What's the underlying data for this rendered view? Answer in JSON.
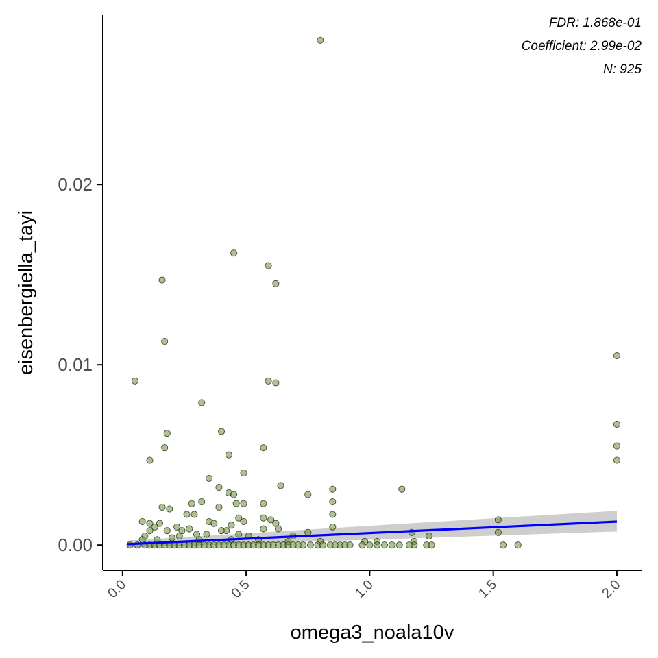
{
  "chart_data": {
    "type": "scatter",
    "title": "",
    "xlabel": "omega3_noala10v",
    "ylabel": "eisenbergiella_tayi",
    "xlim": [
      -0.08,
      2.1
    ],
    "ylim": [
      -0.0014,
      0.0294
    ],
    "x_ticks": [
      0.0,
      0.5,
      1.0,
      1.5,
      2.0
    ],
    "x_tick_labels": [
      "0.0",
      "0.5",
      "1.0",
      "1.5",
      "2.0"
    ],
    "y_ticks": [
      0.0,
      0.01,
      0.02
    ],
    "y_tick_labels": [
      "0.00",
      "0.01",
      "0.02"
    ],
    "grid": false,
    "legend": "none",
    "annotations": [
      "FDR: 1.868e-01",
      "Coefficient: 2.99e-02",
      "N: 925"
    ],
    "colors": {
      "point_fill": "#6b8e3a",
      "point_stroke": "#1f2a10",
      "trend_line": "#0000ff",
      "ci_band": "#bebebe",
      "axis": "#000000"
    },
    "trend_line": {
      "x": [
        0.02,
        2.0
      ],
      "y": [
        5e-05,
        0.0013
      ]
    },
    "ci_band": {
      "x": [
        0.02,
        2.0
      ],
      "upper": [
        0.00025,
        0.0019
      ],
      "lower": [
        -0.00015,
        0.00075
      ]
    },
    "series": [
      {
        "points": [
          [
            0.8,
            0.028
          ],
          [
            0.45,
            0.0162
          ],
          [
            0.59,
            0.0155
          ],
          [
            0.16,
            0.0147
          ],
          [
            0.62,
            0.0145
          ],
          [
            0.17,
            0.0113
          ],
          [
            2.0,
            0.0105
          ],
          [
            0.05,
            0.0091
          ],
          [
            0.59,
            0.0091
          ],
          [
            0.62,
            0.009
          ],
          [
            0.32,
            0.0079
          ],
          [
            2.0,
            0.0067
          ],
          [
            0.4,
            0.0063
          ],
          [
            0.18,
            0.0062
          ],
          [
            2.0,
            0.0055
          ],
          [
            0.17,
            0.0054
          ],
          [
            0.57,
            0.0054
          ],
          [
            0.43,
            0.005
          ],
          [
            0.11,
            0.0047
          ],
          [
            2.0,
            0.0047
          ],
          [
            0.49,
            0.004
          ],
          [
            0.35,
            0.0037
          ],
          [
            0.64,
            0.0033
          ],
          [
            0.39,
            0.0032
          ],
          [
            1.13,
            0.0031
          ],
          [
            0.85,
            0.0031
          ],
          [
            0.75,
            0.0028
          ],
          [
            0.43,
            0.0029
          ],
          [
            0.45,
            0.0028
          ],
          [
            0.32,
            0.0024
          ],
          [
            0.85,
            0.0024
          ],
          [
            0.46,
            0.0023
          ],
          [
            0.49,
            0.0023
          ],
          [
            0.57,
            0.0023
          ],
          [
            0.28,
            0.0023
          ],
          [
            0.39,
            0.0021
          ],
          [
            0.16,
            0.0021
          ],
          [
            0.19,
            0.002
          ],
          [
            0.85,
            0.0017
          ],
          [
            0.26,
            0.0017
          ],
          [
            0.29,
            0.0017
          ],
          [
            0.47,
            0.0015
          ],
          [
            0.57,
            0.0015
          ],
          [
            0.6,
            0.0014
          ],
          [
            0.08,
            0.0013
          ],
          [
            0.11,
            0.0012
          ],
          [
            0.15,
            0.0012
          ],
          [
            1.52,
            0.0014
          ],
          [
            0.35,
            0.0013
          ],
          [
            0.49,
            0.0013
          ],
          [
            0.62,
            0.0012
          ],
          [
            0.37,
            0.0012
          ],
          [
            0.44,
            0.0011
          ],
          [
            0.13,
            0.001
          ],
          [
            0.22,
            0.001
          ],
          [
            0.27,
            0.0009
          ],
          [
            0.63,
            0.0009
          ],
          [
            0.85,
            0.001
          ],
          [
            0.57,
            0.0009
          ],
          [
            0.11,
            0.0008
          ],
          [
            0.18,
            0.0008
          ],
          [
            0.24,
            0.0008
          ],
          [
            0.4,
            0.0008
          ],
          [
            0.42,
            0.0008
          ],
          [
            0.75,
            0.0007
          ],
          [
            1.17,
            0.0007
          ],
          [
            1.52,
            0.0007
          ],
          [
            0.09,
            0.0005
          ],
          [
            0.23,
            0.0005
          ],
          [
            0.3,
            0.0006
          ],
          [
            0.34,
            0.0006
          ],
          [
            0.47,
            0.0006
          ],
          [
            0.51,
            0.0005
          ],
          [
            0.69,
            0.0005
          ],
          [
            1.24,
            0.0005
          ],
          [
            0.08,
            0.0003
          ],
          [
            0.14,
            0.0003
          ],
          [
            0.2,
            0.0004
          ],
          [
            0.31,
            0.0003
          ],
          [
            0.44,
            0.0003
          ],
          [
            0.55,
            0.0003
          ],
          [
            0.67,
            0.0002
          ],
          [
            0.8,
            0.0002
          ],
          [
            0.98,
            0.0002
          ],
          [
            1.03,
            0.0002
          ],
          [
            1.18,
            0.0002
          ],
          [
            0.03,
            0.0
          ],
          [
            0.06,
            0.0
          ],
          [
            0.09,
            0.0
          ],
          [
            0.11,
            0.0
          ],
          [
            0.13,
            0.0
          ],
          [
            0.15,
            0.0
          ],
          [
            0.17,
            0.0
          ],
          [
            0.19,
            0.0
          ],
          [
            0.21,
            0.0
          ],
          [
            0.23,
            0.0
          ],
          [
            0.25,
            0.0
          ],
          [
            0.27,
            0.0
          ],
          [
            0.29,
            0.0
          ],
          [
            0.31,
            0.0
          ],
          [
            0.33,
            0.0
          ],
          [
            0.35,
            0.0
          ],
          [
            0.37,
            0.0
          ],
          [
            0.39,
            0.0
          ],
          [
            0.41,
            0.0
          ],
          [
            0.43,
            0.0
          ],
          [
            0.45,
            0.0
          ],
          [
            0.47,
            0.0
          ],
          [
            0.49,
            0.0
          ],
          [
            0.51,
            0.0
          ],
          [
            0.53,
            0.0
          ],
          [
            0.55,
            0.0
          ],
          [
            0.57,
            0.0
          ],
          [
            0.59,
            0.0
          ],
          [
            0.61,
            0.0
          ],
          [
            0.63,
            0.0
          ],
          [
            0.65,
            0.0
          ],
          [
            0.67,
            0.0
          ],
          [
            0.69,
            0.0
          ],
          [
            0.71,
            0.0
          ],
          [
            0.73,
            0.0
          ],
          [
            0.76,
            0.0
          ],
          [
            0.79,
            0.0
          ],
          [
            0.81,
            0.0
          ],
          [
            0.84,
            0.0
          ],
          [
            0.86,
            0.0
          ],
          [
            0.88,
            0.0
          ],
          [
            0.9,
            0.0
          ],
          [
            0.92,
            0.0
          ],
          [
            0.97,
            0.0
          ],
          [
            1.0,
            0.0
          ],
          [
            1.03,
            0.0
          ],
          [
            1.06,
            0.0
          ],
          [
            1.09,
            0.0
          ],
          [
            1.12,
            0.0
          ],
          [
            1.16,
            0.0
          ],
          [
            1.18,
            0.0
          ],
          [
            1.23,
            0.0
          ],
          [
            1.25,
            0.0
          ],
          [
            1.54,
            0.0
          ],
          [
            1.6,
            0.0
          ]
        ]
      }
    ]
  }
}
